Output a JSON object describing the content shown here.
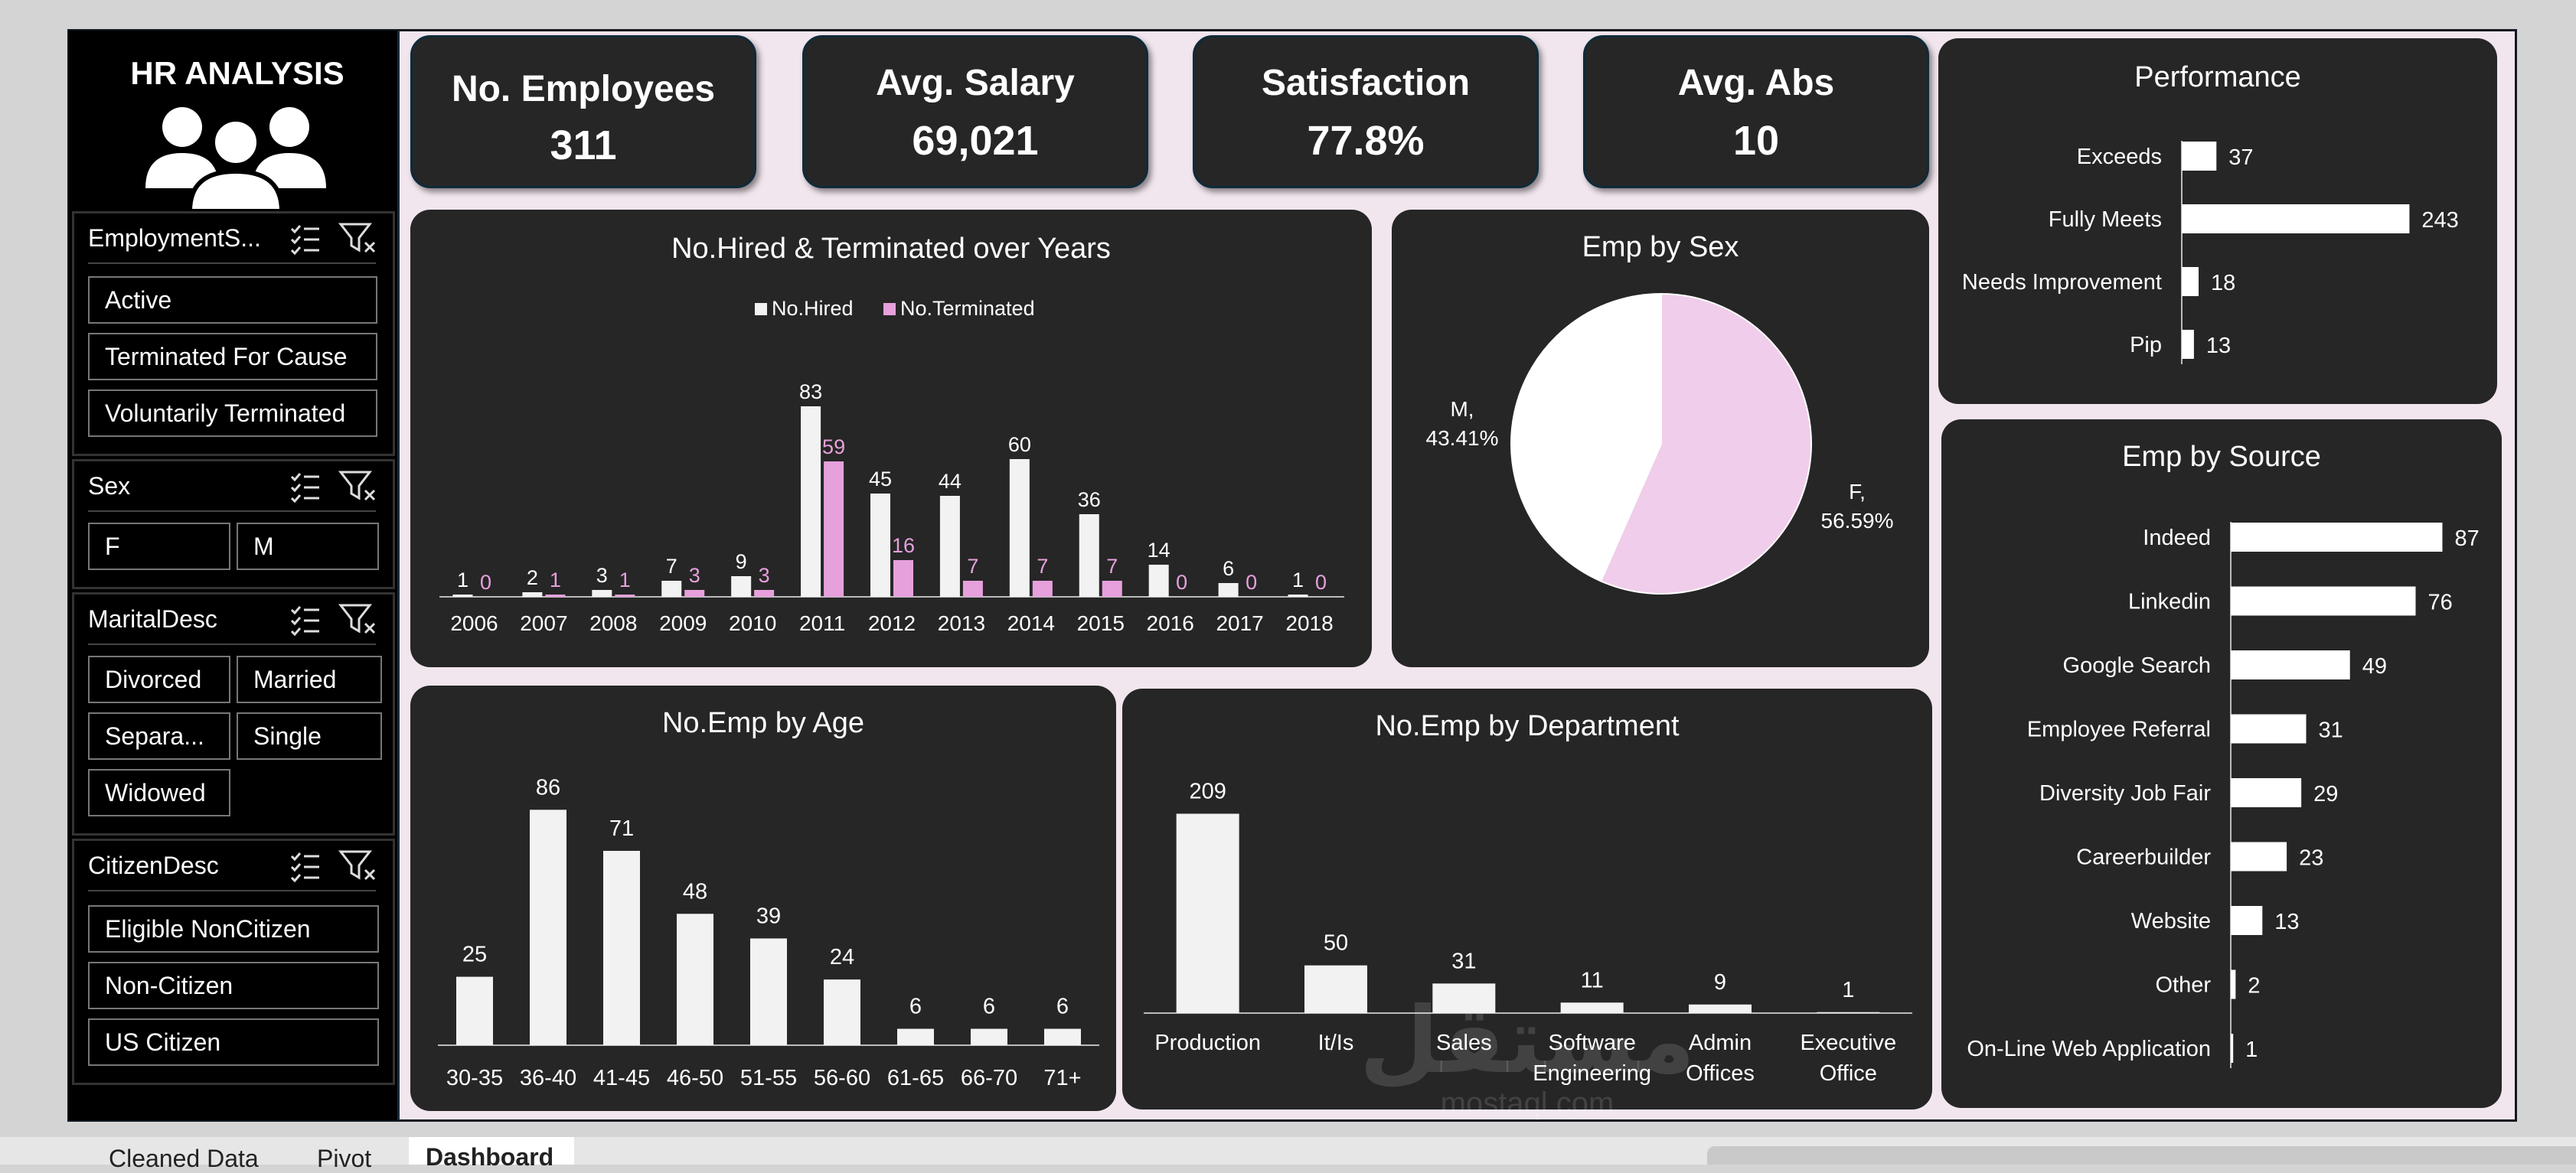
{
  "sidebar": {
    "title": "HR ANALYSIS",
    "slicers": [
      {
        "name": "EmploymentS...",
        "items": [
          "Active",
          "Terminated For Cause",
          "Voluntarily Terminated"
        ]
      },
      {
        "name": "Sex",
        "items": [
          "F",
          "M"
        ]
      },
      {
        "name": "MaritalDesc",
        "items": [
          "Divorced",
          "Married",
          "Separa...",
          "Single",
          "Widowed"
        ]
      },
      {
        "name": "CitizenDesc",
        "items": [
          "Eligible NonCitizen",
          "Non-Citizen",
          "US Citizen"
        ]
      }
    ]
  },
  "kpis": [
    {
      "label": "No. Employees",
      "value": "311"
    },
    {
      "label": "Avg. Salary",
      "value": "69,021"
    },
    {
      "label": "Satisfaction",
      "value": "77.8%"
    },
    {
      "label": "Avg. Abs",
      "value": "10"
    }
  ],
  "colors": {
    "hired": "#f2f2f2",
    "terminated": "#e6a0dc",
    "female": "#f0cdea",
    "male": "#ffffff",
    "panel": "#262626"
  },
  "chart_data": [
    {
      "id": "hired",
      "type": "bar",
      "title": "No.Hired & Terminated over Years",
      "categories": [
        "2006",
        "2007",
        "2008",
        "2009",
        "2010",
        "2011",
        "2012",
        "2013",
        "2014",
        "2015",
        "2016",
        "2017",
        "2018"
      ],
      "series": [
        {
          "name": "No.Hired",
          "values": [
            1,
            2,
            3,
            7,
            9,
            83,
            45,
            44,
            60,
            36,
            14,
            6,
            1
          ]
        },
        {
          "name": "No.Terminated",
          "values": [
            0,
            1,
            1,
            3,
            3,
            59,
            16,
            7,
            7,
            7,
            0,
            0,
            0
          ]
        }
      ],
      "legend": "top",
      "ylim": [
        0,
        90
      ]
    },
    {
      "id": "sex",
      "type": "pie",
      "title": "Emp by Sex",
      "slices": [
        {
          "label": "F,",
          "pct_label": "56.59%",
          "value": 56.59
        },
        {
          "label": "M,",
          "pct_label": "43.41%",
          "value": 43.41
        }
      ]
    },
    {
      "id": "perf",
      "type": "bar",
      "orientation": "horizontal",
      "title": "Performance",
      "categories": [
        "Exceeds",
        "Fully Meets",
        "Needs Improvement",
        "Pip"
      ],
      "values": [
        37,
        243,
        18,
        13
      ],
      "xlim": [
        0,
        250
      ]
    },
    {
      "id": "source",
      "type": "bar",
      "orientation": "horizontal",
      "title": "Emp by Source",
      "categories": [
        "Indeed",
        "Linkedin",
        "Google Search",
        "Employee Referral",
        "Diversity Job Fair",
        "Careerbuilder",
        "Website",
        "Other",
        "On-Line Web Application"
      ],
      "values": [
        87,
        76,
        49,
        31,
        29,
        23,
        13,
        2,
        1
      ],
      "xlim": [
        0,
        90
      ]
    },
    {
      "id": "age",
      "type": "bar",
      "title": "No.Emp by Age",
      "categories": [
        "30-35",
        "36-40",
        "41-45",
        "46-50",
        "51-55",
        "56-60",
        "61-65",
        "66-70",
        "71+"
      ],
      "values": [
        25,
        86,
        71,
        48,
        39,
        24,
        6,
        6,
        6
      ],
      "ylim": [
        0,
        90
      ]
    },
    {
      "id": "dept",
      "type": "bar",
      "title": "No.Emp by Department",
      "categories": [
        [
          "Production"
        ],
        [
          "It/Is"
        ],
        [
          "Sales"
        ],
        [
          "Software",
          "Engineering"
        ],
        [
          "Admin",
          "Offices"
        ],
        [
          "Executive",
          "Office"
        ]
      ],
      "values": [
        209,
        50,
        31,
        11,
        9,
        1
      ],
      "ylim": [
        0,
        215
      ]
    }
  ],
  "tabs": [
    "Cleaned Data",
    "Pivot",
    "Dashboard"
  ],
  "watermark": {
    "arabic": "مستقل",
    "latin": "mostaql.com"
  }
}
